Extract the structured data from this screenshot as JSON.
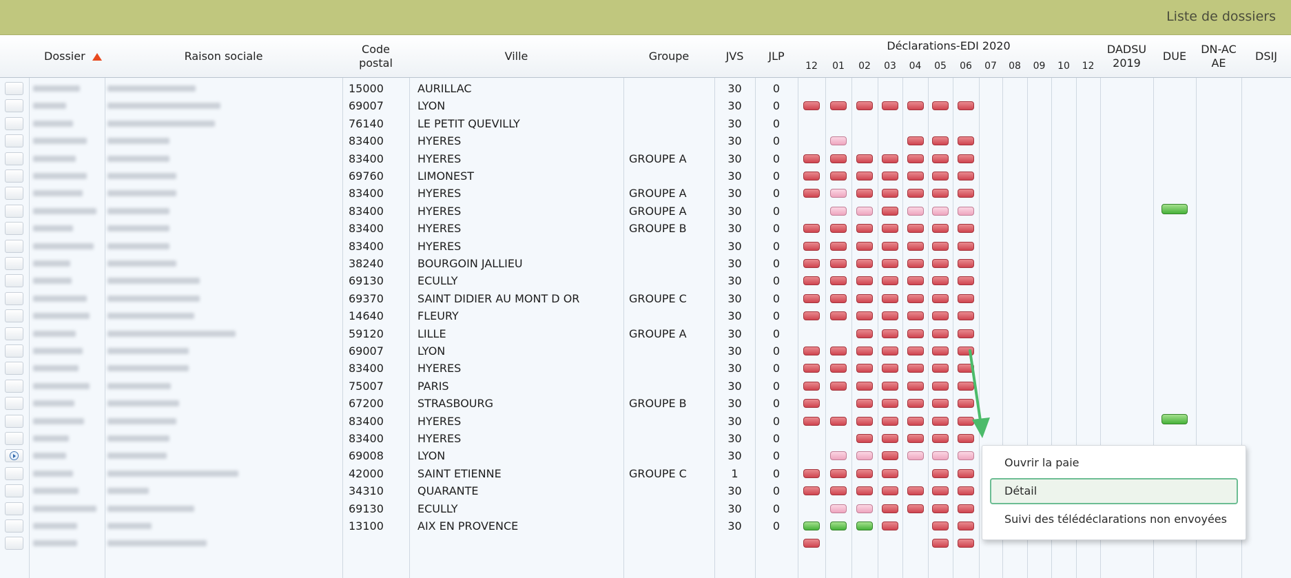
{
  "app": {
    "title": "Liste de dossiers"
  },
  "columns": {
    "dossier": "Dossier",
    "raison_sociale": "Raison sociale",
    "code_postal_line1": "Code",
    "code_postal_line2": "postal",
    "ville": "Ville",
    "groupe": "Groupe",
    "jvs": "JVS",
    "jlp": "JLP",
    "edi_title": "Déclarations-EDI 2020",
    "months": [
      "12",
      "01",
      "02",
      "03",
      "04",
      "05",
      "06",
      "07",
      "08",
      "09",
      "10",
      "12"
    ],
    "dadsu_line1": "DADSU",
    "dadsu_line2": "2019",
    "due": "DUE",
    "dnac_line1": "DN-AC",
    "dnac_line2": "AE",
    "dsij": "DSIJ"
  },
  "rows": [
    {
      "code": "15000",
      "ville": "AURILLAC",
      "groupe": "",
      "jvs": "30",
      "jlp": "0",
      "status": "-------"
    },
    {
      "code": "69007",
      "ville": "LYON",
      "groupe": "",
      "jvs": "30",
      "jlp": "0",
      "status": "RRRRRRR"
    },
    {
      "code": "76140",
      "ville": "LE PETIT QUEVILLY",
      "groupe": "",
      "jvs": "30",
      "jlp": "0",
      "status": "-------"
    },
    {
      "code": "83400",
      "ville": "HYERES",
      "groupe": "",
      "jvs": "30",
      "jlp": "0",
      "status": "-P--RRR"
    },
    {
      "code": "83400",
      "ville": "HYERES",
      "groupe": "GROUPE A",
      "jvs": "30",
      "jlp": "0",
      "status": "RRRRRRR"
    },
    {
      "code": "69760",
      "ville": "LIMONEST",
      "groupe": "",
      "jvs": "30",
      "jlp": "0",
      "status": "RRRRRRR"
    },
    {
      "code": "83400",
      "ville": "HYERES",
      "groupe": "GROUPE A",
      "jvs": "30",
      "jlp": "0",
      "status": "RPRRRRR"
    },
    {
      "code": "83400",
      "ville": "HYERES",
      "groupe": "GROUPE A",
      "jvs": "30",
      "jlp": "0",
      "status": "-PPRPPP",
      "due": "green"
    },
    {
      "code": "83400",
      "ville": "HYERES",
      "groupe": "GROUPE B",
      "jvs": "30",
      "jlp": "0",
      "status": "RRRRRRR"
    },
    {
      "code": "83400",
      "ville": "HYERES",
      "groupe": "",
      "jvs": "30",
      "jlp": "0",
      "status": "RRRRRRR"
    },
    {
      "code": "38240",
      "ville": "BOURGOIN JALLIEU",
      "groupe": "",
      "jvs": "30",
      "jlp": "0",
      "status": "RRRRRRR"
    },
    {
      "code": "69130",
      "ville": "ECULLY",
      "groupe": "",
      "jvs": "30",
      "jlp": "0",
      "status": "RRRRRRR"
    },
    {
      "code": "69370",
      "ville": "SAINT DIDIER AU MONT D OR",
      "groupe": "GROUPE C",
      "jvs": "30",
      "jlp": "0",
      "status": "RRRRRRR"
    },
    {
      "code": "14640",
      "ville": "FLEURY",
      "groupe": "",
      "jvs": "30",
      "jlp": "0",
      "status": "RRRRRRR"
    },
    {
      "code": "59120",
      "ville": "LILLE",
      "groupe": "GROUPE A",
      "jvs": "30",
      "jlp": "0",
      "status": "--RRRRR"
    },
    {
      "code": "69007",
      "ville": "LYON",
      "groupe": "",
      "jvs": "30",
      "jlp": "0",
      "status": "RRRRRRR"
    },
    {
      "code": "83400",
      "ville": "HYERES",
      "groupe": "",
      "jvs": "30",
      "jlp": "0",
      "status": "RRRRRRR"
    },
    {
      "code": "75007",
      "ville": "PARIS",
      "groupe": "",
      "jvs": "30",
      "jlp": "0",
      "status": "RRRRRRR"
    },
    {
      "code": "67200",
      "ville": "STRASBOURG",
      "groupe": "GROUPE B",
      "jvs": "30",
      "jlp": "0",
      "status": "R-RRRRR"
    },
    {
      "code": "83400",
      "ville": "HYERES",
      "groupe": "",
      "jvs": "30",
      "jlp": "0",
      "status": "RRRRRRR",
      "due": "green"
    },
    {
      "code": "83400",
      "ville": "HYERES",
      "groupe": "",
      "jvs": "30",
      "jlp": "0",
      "status": "--RRRRR"
    },
    {
      "code": "69008",
      "ville": "LYON",
      "groupe": "",
      "jvs": "30",
      "jlp": "0",
      "status": "-PPRPPP",
      "current": true
    },
    {
      "code": "42000",
      "ville": "SAINT ETIENNE",
      "groupe": "GROUPE C",
      "jvs": "1",
      "jlp": "0",
      "status": "RRRR-RR"
    },
    {
      "code": "34310",
      "ville": "QUARANTE",
      "groupe": "",
      "jvs": "30",
      "jlp": "0",
      "status": "RRRRRRR"
    },
    {
      "code": "69130",
      "ville": "ECULLY",
      "groupe": "",
      "jvs": "30",
      "jlp": "0",
      "status": "-PPRRRR"
    },
    {
      "code": "13100",
      "ville": "AIX EN PROVENCE",
      "groupe": "",
      "jvs": "30",
      "jlp": "0",
      "status": "GGGR-RR"
    },
    {
      "code": "",
      "ville": "",
      "groupe": "",
      "jvs": "",
      "jlp": "",
      "status": "R----RR"
    }
  ],
  "context_menu": {
    "items": [
      {
        "label": "Ouvrir la paie",
        "active": false
      },
      {
        "label": "Détail",
        "active": true
      },
      {
        "label": "Suivi des télédéclarations non envoyées",
        "active": false
      }
    ]
  },
  "colors": {
    "header_bar": "#c0c77e",
    "status_red": "#d9535d",
    "status_pink": "#f2b6cb",
    "status_green": "#5cc14a",
    "pointer_arrow": "#4cbb6a",
    "menu_highlight": "#6cbd93"
  }
}
